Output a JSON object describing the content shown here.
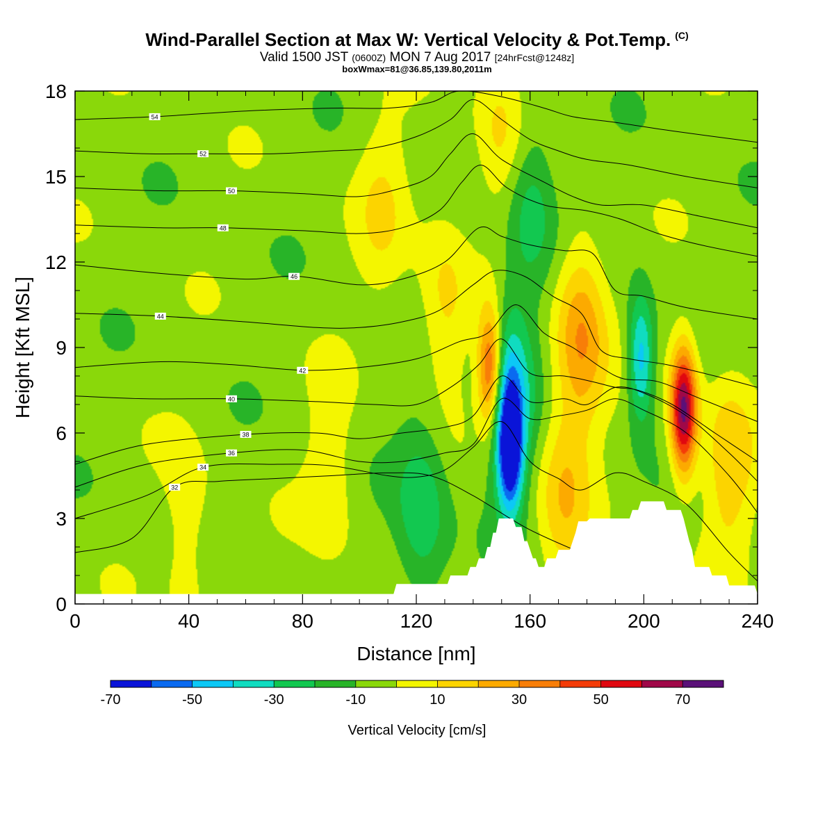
{
  "header": {
    "title": "Wind-Parallel Section at Max W: Vertical Velocity & Pot.Temp.",
    "title_mark": "(C)",
    "subtitle_pre": "Valid 1500 JST",
    "subtitle_z": "(0600Z)",
    "subtitle_mid": "MON 7 Aug 2017",
    "subtitle_fcst": "[24hrFcst@1248z]",
    "boxline": "boxWmax=81@36.85,139.80,2011m"
  },
  "chart_data": {
    "type": "heatmap",
    "title": "Wind-Parallel Section at Max W: Vertical Velocity & Pot.Temp.",
    "xlabel": "Distance [nm]",
    "ylabel": "Height [Kft MSL]",
    "xlim": [
      0,
      240
    ],
    "ylim": [
      0,
      18
    ],
    "x_ticks": [
      "0",
      "40",
      "80",
      "120",
      "160",
      "200",
      "240"
    ],
    "y_ticks": [
      "0",
      "3",
      "6",
      "9",
      "12",
      "15",
      "18"
    ],
    "colorbar": {
      "title": "Vertical Velocity [cm/s]",
      "levels": [
        -70,
        -60,
        -50,
        -40,
        -30,
        -20,
        -10,
        0,
        10,
        20,
        30,
        40,
        50,
        60,
        70,
        80
      ],
      "labels": [
        "-70",
        "-50",
        "-30",
        "-10",
        "10",
        "30",
        "50",
        "70"
      ],
      "colors": [
        "#0a14d8",
        "#0a6af0",
        "#0cc8f6",
        "#10dcc0",
        "#12c850",
        "#28b428",
        "#8ad80a",
        "#f4f600",
        "#fcd400",
        "#fcaa00",
        "#f87e08",
        "#f43c08",
        "#e00810",
        "#a00848",
        "#5a1078"
      ]
    },
    "background_value": -5,
    "features": [
      {
        "kind": "updraft",
        "x": 146,
        "y": 8.2,
        "peak": 62
      },
      {
        "kind": "downdraft",
        "x": 153,
        "y": 5.4,
        "peak": -68
      },
      {
        "kind": "downdraft",
        "x": 152,
        "y": 7.6,
        "peak": -38
      },
      {
        "kind": "updraft",
        "x": 214,
        "y": 6.8,
        "peak": 78
      },
      {
        "kind": "downdraft",
        "x": 199,
        "y": 8.6,
        "peak": -42
      },
      {
        "kind": "updraft",
        "x": 178,
        "y": 9.5,
        "peak": 35
      },
      {
        "kind": "updraft",
        "x": 130,
        "y": 10.5,
        "peak": 18
      },
      {
        "kind": "updraft",
        "x": 150,
        "y": 16.5,
        "peak": 18
      },
      {
        "kind": "updraft",
        "x": 108,
        "y": 14.0,
        "peak": 14
      },
      {
        "kind": "downdraft",
        "x": 160,
        "y": 14.0,
        "peak": -22
      },
      {
        "kind": "downdraft",
        "x": 122,
        "y": 3.2,
        "peak": -24
      },
      {
        "kind": "updraft",
        "x": 40,
        "y": 2.2,
        "peak": 12
      },
      {
        "kind": "updraft",
        "x": 90,
        "y": 4.5,
        "peak": 12
      },
      {
        "kind": "updraft",
        "x": 230,
        "y": 4.8,
        "peak": 22
      },
      {
        "kind": "updraft",
        "x": 172,
        "y": 4.0,
        "peak": 22
      }
    ],
    "terrain": [
      [
        0,
        0.35
      ],
      [
        112,
        0.35
      ],
      [
        113,
        0.7
      ],
      [
        131,
        0.7
      ],
      [
        132,
        1.0
      ],
      [
        138,
        1.0
      ],
      [
        139,
        1.3
      ],
      [
        141,
        1.3
      ],
      [
        142,
        1.6
      ],
      [
        144,
        1.6
      ],
      [
        145,
        2.0
      ],
      [
        146,
        2.0
      ],
      [
        147,
        2.5
      ],
      [
        148,
        2.5
      ],
      [
        149,
        3.0
      ],
      [
        154,
        3.0
      ],
      [
        155,
        2.7
      ],
      [
        157,
        2.7
      ],
      [
        158,
        2.2
      ],
      [
        159,
        2.2
      ],
      [
        160,
        1.9
      ],
      [
        161,
        1.6
      ],
      [
        162,
        1.6
      ],
      [
        163,
        1.3
      ],
      [
        165,
        1.3
      ],
      [
        166,
        1.6
      ],
      [
        169,
        1.6
      ],
      [
        170,
        1.9
      ],
      [
        174,
        1.9
      ],
      [
        175,
        2.2
      ],
      [
        176,
        2.5
      ],
      [
        177,
        2.9
      ],
      [
        180,
        2.9
      ],
      [
        181,
        3.0
      ],
      [
        195,
        3.0
      ],
      [
        196,
        3.3
      ],
      [
        198,
        3.3
      ],
      [
        199,
        3.6
      ],
      [
        207,
        3.6
      ],
      [
        208,
        3.3
      ],
      [
        213,
        3.3
      ],
      [
        214,
        3.0
      ],
      [
        215,
        2.6
      ],
      [
        216,
        2.2
      ],
      [
        217,
        1.9
      ],
      [
        218,
        1.3
      ],
      [
        223,
        1.3
      ],
      [
        224,
        1.0
      ],
      [
        229,
        1.0
      ],
      [
        230,
        0.65
      ],
      [
        239,
        0.65
      ],
      [
        240,
        0.35
      ]
    ],
    "theta_contours": [
      {
        "level": 32,
        "label": "32",
        "label_x": 35,
        "points": [
          [
            0,
            1.8
          ],
          [
            20,
            2.3
          ],
          [
            35,
            4.1
          ],
          [
            50,
            4.3
          ],
          [
            70,
            4.4
          ],
          [
            90,
            4.5
          ],
          [
            110,
            4.6
          ],
          [
            125,
            4.5
          ],
          [
            140,
            3.8
          ],
          [
            160,
            2.6
          ],
          [
            185,
            1.5
          ],
          [
            200,
            0.9
          ],
          [
            215,
            0.4
          ],
          [
            225,
            0.1
          ]
        ]
      },
      {
        "level": 34,
        "label": "34",
        "label_x": 45,
        "points": [
          [
            0,
            3.0
          ],
          [
            25,
            3.8
          ],
          [
            45,
            4.8
          ],
          [
            70,
            4.9
          ],
          [
            90,
            4.85
          ],
          [
            110,
            4.5
          ],
          [
            120,
            4.45
          ],
          [
            130,
            4.7
          ],
          [
            140,
            5.5
          ],
          [
            150,
            6.4
          ],
          [
            160,
            5.0
          ],
          [
            170,
            4.4
          ],
          [
            178,
            4.0
          ],
          [
            190,
            4.6
          ],
          [
            200,
            4.3
          ],
          [
            215,
            3.5
          ],
          [
            230,
            1.8
          ],
          [
            240,
            0.8
          ]
        ]
      },
      {
        "level": 36,
        "label": "36",
        "label_x": 55,
        "points": [
          [
            0,
            4.1
          ],
          [
            25,
            4.9
          ],
          [
            55,
            5.3
          ],
          [
            80,
            5.4
          ],
          [
            100,
            5.0
          ],
          [
            115,
            5.0
          ],
          [
            130,
            5.3
          ],
          [
            140,
            5.6
          ],
          [
            150,
            7.2
          ],
          [
            160,
            6.5
          ],
          [
            170,
            6.6
          ],
          [
            180,
            6.8
          ],
          [
            190,
            7.2
          ],
          [
            200,
            6.8
          ],
          [
            215,
            6.0
          ],
          [
            230,
            4.5
          ],
          [
            240,
            3.2
          ]
        ]
      },
      {
        "level": 38,
        "label": "38",
        "label_x": 60,
        "points": [
          [
            0,
            4.9
          ],
          [
            25,
            5.6
          ],
          [
            60,
            5.95
          ],
          [
            85,
            6.0
          ],
          [
            100,
            5.8
          ],
          [
            115,
            6.0
          ],
          [
            130,
            6.2
          ],
          [
            140,
            6.6
          ],
          [
            150,
            8.0
          ],
          [
            160,
            7.1
          ],
          [
            172,
            7.2
          ],
          [
            180,
            7.0
          ],
          [
            190,
            7.6
          ],
          [
            200,
            7.4
          ],
          [
            215,
            6.6
          ],
          [
            230,
            5.3
          ],
          [
            240,
            4.3
          ]
        ]
      },
      {
        "level": 40,
        "label": "40",
        "label_x": 55,
        "points": [
          [
            0,
            7.3
          ],
          [
            25,
            7.2
          ],
          [
            55,
            7.2
          ],
          [
            85,
            7.1
          ],
          [
            105,
            7.0
          ],
          [
            120,
            7.0
          ],
          [
            132,
            7.6
          ],
          [
            142,
            8.4
          ],
          [
            150,
            9.3
          ],
          [
            160,
            8.1
          ],
          [
            172,
            8.0
          ],
          [
            182,
            7.8
          ],
          [
            190,
            7.6
          ],
          [
            198,
            7.5
          ],
          [
            210,
            7.0
          ],
          [
            225,
            6.0
          ],
          [
            240,
            5.0
          ]
        ]
      },
      {
        "level": 42,
        "label": "42",
        "label_x": 80,
        "points": [
          [
            0,
            8.3
          ],
          [
            30,
            8.5
          ],
          [
            55,
            8.4
          ],
          [
            80,
            8.2
          ],
          [
            100,
            8.3
          ],
          [
            120,
            8.6
          ],
          [
            135,
            9.2
          ],
          [
            145,
            9.5
          ],
          [
            155,
            10.5
          ],
          [
            165,
            9.5
          ],
          [
            175,
            9.0
          ],
          [
            185,
            8.3
          ],
          [
            193,
            7.9
          ],
          [
            205,
            7.8
          ],
          [
            220,
            7.2
          ],
          [
            240,
            6.4
          ]
        ]
      },
      {
        "level": 44,
        "label": "44",
        "label_x": 30,
        "points": [
          [
            0,
            10.2
          ],
          [
            30,
            10.1
          ],
          [
            60,
            9.9
          ],
          [
            85,
            9.7
          ],
          [
            100,
            9.7
          ],
          [
            115,
            9.9
          ],
          [
            128,
            10.3
          ],
          [
            140,
            11.2
          ],
          [
            148,
            11.7
          ],
          [
            158,
            11.5
          ],
          [
            168,
            10.8
          ],
          [
            178,
            10.2
          ],
          [
            185,
            8.9
          ],
          [
            195,
            8.6
          ],
          [
            208,
            8.4
          ],
          [
            225,
            8.0
          ],
          [
            240,
            7.6
          ]
        ]
      },
      {
        "level": 46,
        "label": "46",
        "label_x": 77,
        "points": [
          [
            0,
            11.9
          ],
          [
            30,
            11.6
          ],
          [
            60,
            11.4
          ],
          [
            78,
            11.5
          ],
          [
            100,
            11.2
          ],
          [
            115,
            11.4
          ],
          [
            130,
            12.0
          ],
          [
            142,
            13.2
          ],
          [
            150,
            12.9
          ],
          [
            160,
            12.6
          ],
          [
            172,
            12.4
          ],
          [
            182,
            12.3
          ],
          [
            190,
            11.0
          ],
          [
            200,
            10.8
          ],
          [
            215,
            10.4
          ],
          [
            240,
            10.0
          ]
        ]
      },
      {
        "level": 48,
        "label": "48",
        "label_x": 52,
        "points": [
          [
            0,
            13.3
          ],
          [
            30,
            13.2
          ],
          [
            52,
            13.2
          ],
          [
            80,
            13.1
          ],
          [
            100,
            13.0
          ],
          [
            115,
            13.2
          ],
          [
            128,
            13.8
          ],
          [
            136,
            14.8
          ],
          [
            143,
            15.4
          ],
          [
            152,
            14.6
          ],
          [
            165,
            14.0
          ],
          [
            180,
            13.8
          ],
          [
            192,
            13.5
          ],
          [
            205,
            13.0
          ],
          [
            220,
            12.6
          ],
          [
            240,
            12.2
          ]
        ]
      },
      {
        "level": 50,
        "label": "50",
        "label_x": 55,
        "points": [
          [
            0,
            14.6
          ],
          [
            30,
            14.5
          ],
          [
            55,
            14.5
          ],
          [
            80,
            14.4
          ],
          [
            100,
            14.3
          ],
          [
            115,
            14.6
          ],
          [
            125,
            15.0
          ],
          [
            132,
            15.8
          ],
          [
            140,
            16.5
          ],
          [
            150,
            15.6
          ],
          [
            165,
            14.8
          ],
          [
            175,
            14.3
          ],
          [
            185,
            14.0
          ],
          [
            200,
            14.0
          ],
          [
            220,
            13.6
          ],
          [
            240,
            13.2
          ]
        ]
      },
      {
        "level": 52,
        "label": "52",
        "label_x": 45,
        "points": [
          [
            0,
            15.9
          ],
          [
            25,
            15.8
          ],
          [
            45,
            15.8
          ],
          [
            70,
            15.8
          ],
          [
            90,
            15.9
          ],
          [
            105,
            16.0
          ],
          [
            120,
            16.4
          ],
          [
            132,
            17.0
          ],
          [
            140,
            17.7
          ],
          [
            150,
            17.0
          ],
          [
            160,
            16.3
          ],
          [
            170,
            15.9
          ],
          [
            180,
            15.6
          ],
          [
            195,
            15.4
          ],
          [
            215,
            15.0
          ],
          [
            240,
            14.6
          ]
        ]
      },
      {
        "level": 54,
        "label": "54",
        "label_x": 28,
        "points": [
          [
            0,
            17.0
          ],
          [
            28,
            17.1
          ],
          [
            60,
            17.3
          ],
          [
            90,
            17.4
          ],
          [
            110,
            17.4
          ],
          [
            125,
            17.6
          ],
          [
            135,
            18.0
          ],
          [
            150,
            17.8
          ],
          [
            165,
            17.4
          ],
          [
            175,
            17.1
          ],
          [
            190,
            16.9
          ],
          [
            210,
            16.6
          ],
          [
            240,
            16.2
          ]
        ]
      }
    ]
  }
}
